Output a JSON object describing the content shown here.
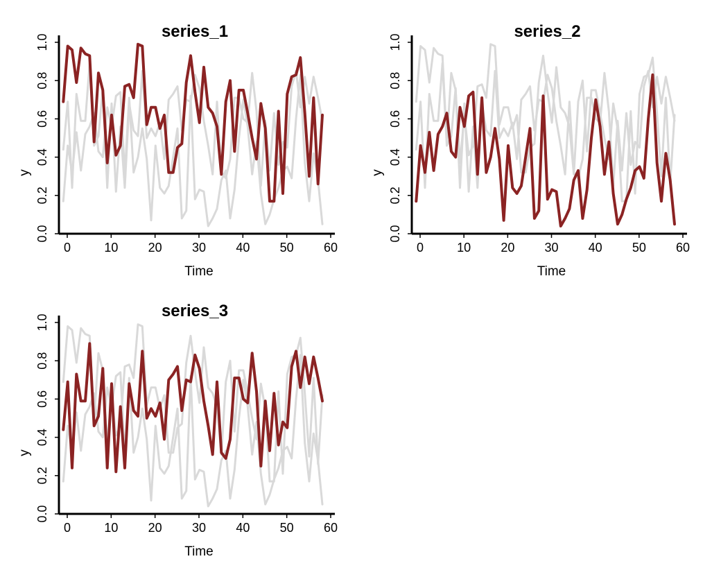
{
  "chart_data": [
    {
      "type": "line",
      "title": "series_1",
      "xlabel": "Time",
      "ylabel": "y",
      "xlim": [
        1,
        60
      ],
      "ylim": [
        0,
        1
      ],
      "x_ticks": [
        0,
        10,
        20,
        30,
        40,
        50,
        60
      ],
      "y_ticks": [
        "0.0",
        "0.2",
        "0.4",
        "0.6",
        "0.8",
        "1.0"
      ],
      "grid": false,
      "legend": "none",
      "highlight_color": "#8B2323",
      "background_color": "#D9D9D9",
      "highlight_series": 0,
      "series": [
        {
          "values": [
            0.69,
            0.98,
            0.96,
            0.79,
            0.97,
            0.94,
            0.93,
            0.48,
            0.84,
            0.75,
            0.37,
            0.62,
            0.41,
            0.46,
            0.77,
            0.78,
            0.71,
            0.99,
            0.98,
            0.57,
            0.66,
            0.66,
            0.55,
            0.62,
            0.32,
            0.32,
            0.45,
            0.47,
            0.79,
            0.93,
            0.74,
            0.58,
            0.87,
            0.66,
            0.63,
            0.56,
            0.31,
            0.69,
            0.8,
            0.43,
            0.75,
            0.75,
            0.63,
            0.5,
            0.39,
            0.68,
            0.55,
            0.17,
            0.17,
            0.64,
            0.21,
            0.73,
            0.82,
            0.83,
            0.92,
            0.63,
            0.3,
            0.71,
            0.26,
            0.62
          ]
        },
        {
          "values": [
            0.17,
            0.46,
            0.32,
            0.53,
            0.33,
            0.52,
            0.56,
            0.63,
            0.43,
            0.4,
            0.66,
            0.56,
            0.72,
            0.74,
            0.31,
            0.71,
            0.32,
            0.4,
            0.55,
            0.39,
            0.07,
            0.46,
            0.24,
            0.21,
            0.25,
            0.4,
            0.55,
            0.08,
            0.12,
            0.72,
            0.18,
            0.23,
            0.22,
            0.04,
            0.08,
            0.13,
            0.28,
            0.33,
            0.08,
            0.23,
            0.5,
            0.7,
            0.56,
            0.31,
            0.48,
            0.21,
            0.05,
            0.1,
            0.18,
            0.24,
            0.33,
            0.35,
            0.29,
            0.6,
            0.83,
            0.37,
            0.17,
            0.42,
            0.28,
            0.05
          ]
        },
        {
          "values": [
            0.44,
            0.69,
            0.24,
            0.73,
            0.59,
            0.59,
            0.89,
            0.46,
            0.51,
            0.76,
            0.24,
            0.68,
            0.22,
            0.56,
            0.24,
            0.68,
            0.54,
            0.51,
            0.85,
            0.5,
            0.55,
            0.51,
            0.58,
            0.39,
            0.7,
            0.73,
            0.77,
            0.54,
            0.7,
            0.69,
            0.83,
            0.76,
            0.59,
            0.46,
            0.31,
            0.69,
            0.32,
            0.29,
            0.39,
            0.71,
            0.71,
            0.6,
            0.58,
            0.84,
            0.64,
            0.25,
            0.59,
            0.33,
            0.63,
            0.36,
            0.48,
            0.45,
            0.77,
            0.85,
            0.66,
            0.82,
            0.68,
            0.82,
            0.71,
            0.59
          ]
        }
      ]
    },
    {
      "type": "line",
      "title": "series_2",
      "xlabel": "Time",
      "ylabel": "y",
      "xlim": [
        1,
        60
      ],
      "ylim": [
        0,
        1
      ],
      "x_ticks": [
        0,
        10,
        20,
        30,
        40,
        50,
        60
      ],
      "y_ticks": [
        "0.0",
        "0.2",
        "0.4",
        "0.6",
        "0.8",
        "1.0"
      ],
      "grid": false,
      "legend": "none",
      "highlight_color": "#8B2323",
      "background_color": "#D9D9D9",
      "highlight_series": 1,
      "series": [
        {
          "values": [
            0.69,
            0.98,
            0.96,
            0.79,
            0.97,
            0.94,
            0.93,
            0.48,
            0.84,
            0.75,
            0.37,
            0.62,
            0.41,
            0.46,
            0.77,
            0.78,
            0.71,
            0.99,
            0.98,
            0.57,
            0.66,
            0.66,
            0.55,
            0.62,
            0.32,
            0.32,
            0.45,
            0.47,
            0.79,
            0.93,
            0.74,
            0.58,
            0.87,
            0.66,
            0.63,
            0.56,
            0.31,
            0.69,
            0.8,
            0.43,
            0.75,
            0.75,
            0.63,
            0.5,
            0.39,
            0.68,
            0.55,
            0.17,
            0.17,
            0.64,
            0.21,
            0.73,
            0.82,
            0.83,
            0.92,
            0.63,
            0.3,
            0.71,
            0.26,
            0.62
          ]
        },
        {
          "values": [
            0.17,
            0.46,
            0.32,
            0.53,
            0.33,
            0.52,
            0.56,
            0.63,
            0.43,
            0.4,
            0.66,
            0.56,
            0.72,
            0.74,
            0.31,
            0.71,
            0.32,
            0.4,
            0.55,
            0.39,
            0.07,
            0.46,
            0.24,
            0.21,
            0.25,
            0.4,
            0.55,
            0.08,
            0.12,
            0.72,
            0.18,
            0.23,
            0.22,
            0.04,
            0.08,
            0.13,
            0.28,
            0.33,
            0.08,
            0.23,
            0.5,
            0.7,
            0.56,
            0.31,
            0.48,
            0.21,
            0.05,
            0.1,
            0.18,
            0.24,
            0.33,
            0.35,
            0.29,
            0.6,
            0.83,
            0.37,
            0.17,
            0.42,
            0.28,
            0.05
          ]
        },
        {
          "values": [
            0.44,
            0.69,
            0.24,
            0.73,
            0.59,
            0.59,
            0.89,
            0.46,
            0.51,
            0.76,
            0.24,
            0.68,
            0.22,
            0.56,
            0.24,
            0.68,
            0.54,
            0.51,
            0.85,
            0.5,
            0.55,
            0.51,
            0.58,
            0.39,
            0.7,
            0.73,
            0.77,
            0.54,
            0.7,
            0.69,
            0.83,
            0.76,
            0.59,
            0.46,
            0.31,
            0.69,
            0.32,
            0.29,
            0.39,
            0.71,
            0.71,
            0.6,
            0.58,
            0.84,
            0.64,
            0.25,
            0.59,
            0.33,
            0.63,
            0.36,
            0.48,
            0.45,
            0.77,
            0.85,
            0.66,
            0.82,
            0.68,
            0.82,
            0.71,
            0.59
          ]
        }
      ]
    },
    {
      "type": "line",
      "title": "series_3",
      "xlabel": "Time",
      "ylabel": "y",
      "xlim": [
        1,
        60
      ],
      "ylim": [
        0,
        1
      ],
      "x_ticks": [
        0,
        10,
        20,
        30,
        40,
        50,
        60
      ],
      "y_ticks": [
        "0.0",
        "0.2",
        "0.4",
        "0.6",
        "0.8",
        "1.0"
      ],
      "grid": false,
      "legend": "none",
      "highlight_color": "#8B2323",
      "background_color": "#D9D9D9",
      "highlight_series": 2,
      "series": [
        {
          "values": [
            0.69,
            0.98,
            0.96,
            0.79,
            0.97,
            0.94,
            0.93,
            0.48,
            0.84,
            0.75,
            0.37,
            0.62,
            0.41,
            0.46,
            0.77,
            0.78,
            0.71,
            0.99,
            0.98,
            0.57,
            0.66,
            0.66,
            0.55,
            0.62,
            0.32,
            0.32,
            0.45,
            0.47,
            0.79,
            0.93,
            0.74,
            0.58,
            0.87,
            0.66,
            0.63,
            0.56,
            0.31,
            0.69,
            0.8,
            0.43,
            0.75,
            0.75,
            0.63,
            0.5,
            0.39,
            0.68,
            0.55,
            0.17,
            0.17,
            0.64,
            0.21,
            0.73,
            0.82,
            0.83,
            0.92,
            0.63,
            0.3,
            0.71,
            0.26,
            0.62
          ]
        },
        {
          "values": [
            0.17,
            0.46,
            0.32,
            0.53,
            0.33,
            0.52,
            0.56,
            0.63,
            0.43,
            0.4,
            0.66,
            0.56,
            0.72,
            0.74,
            0.31,
            0.71,
            0.32,
            0.4,
            0.55,
            0.39,
            0.07,
            0.46,
            0.24,
            0.21,
            0.25,
            0.4,
            0.55,
            0.08,
            0.12,
            0.72,
            0.18,
            0.23,
            0.22,
            0.04,
            0.08,
            0.13,
            0.28,
            0.33,
            0.08,
            0.23,
            0.5,
            0.7,
            0.56,
            0.31,
            0.48,
            0.21,
            0.05,
            0.1,
            0.18,
            0.24,
            0.33,
            0.35,
            0.29,
            0.6,
            0.83,
            0.37,
            0.17,
            0.42,
            0.28,
            0.05
          ]
        },
        {
          "values": [
            0.44,
            0.69,
            0.24,
            0.73,
            0.59,
            0.59,
            0.89,
            0.46,
            0.51,
            0.76,
            0.24,
            0.68,
            0.22,
            0.56,
            0.24,
            0.68,
            0.54,
            0.51,
            0.85,
            0.5,
            0.55,
            0.51,
            0.58,
            0.39,
            0.7,
            0.73,
            0.77,
            0.54,
            0.7,
            0.69,
            0.83,
            0.76,
            0.59,
            0.46,
            0.31,
            0.69,
            0.32,
            0.29,
            0.39,
            0.71,
            0.71,
            0.6,
            0.58,
            0.84,
            0.64,
            0.25,
            0.59,
            0.33,
            0.63,
            0.36,
            0.48,
            0.45,
            0.77,
            0.85,
            0.66,
            0.82,
            0.68,
            0.82,
            0.71,
            0.59
          ]
        }
      ]
    }
  ]
}
